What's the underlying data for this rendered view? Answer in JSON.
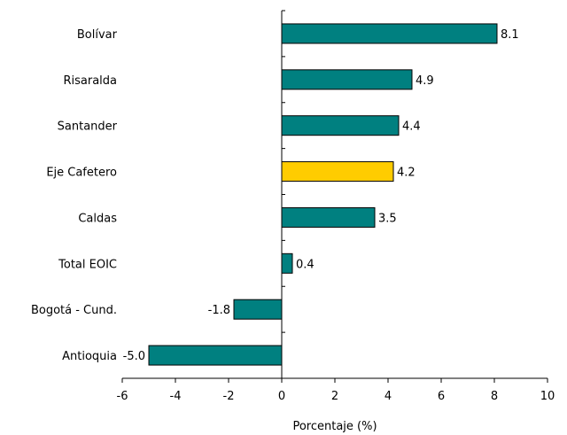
{
  "chart_data": {
    "type": "bar",
    "orientation": "horizontal",
    "categories": [
      "Bolívar",
      "Risaralda",
      "Santander",
      "Eje Cafetero",
      "Caldas",
      "Total EOIC",
      "Bogotá - Cund.",
      "Antioquia"
    ],
    "values": [
      8.1,
      4.9,
      4.4,
      4.2,
      3.5,
      0.4,
      -1.8,
      -5.0
    ],
    "value_labels": [
      "8.1",
      "4.9",
      "4.4",
      "4.2",
      "3.5",
      "0.4",
      "-1.8",
      "-5.0"
    ],
    "highlight_category": "Eje Cafetero",
    "xlabel": "Porcentaje (%)",
    "ylabel": "",
    "xlim": [
      -6,
      10
    ],
    "xticks": [
      -6,
      -4,
      -2,
      0,
      2,
      4,
      6,
      8,
      10
    ],
    "xtick_labels": [
      "-6",
      "-4",
      "-2",
      "0",
      "2",
      "4",
      "6",
      "8",
      "10"
    ],
    "grid": false,
    "colors": {
      "bar": "#008080",
      "highlight": "#FFCC00",
      "outline": "#000000"
    }
  }
}
